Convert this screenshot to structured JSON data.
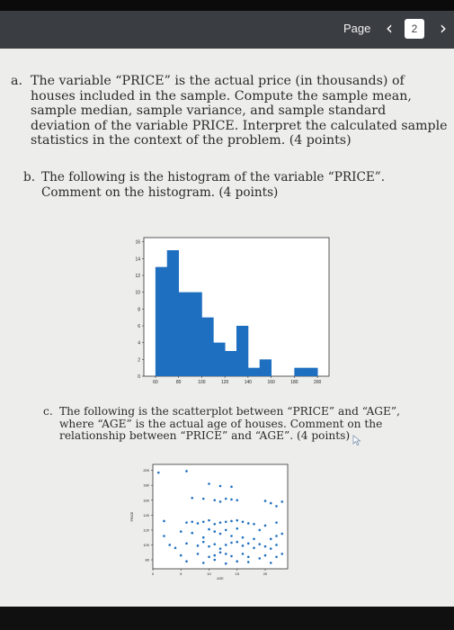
{
  "viewer": {
    "page_label": "Page",
    "prev_glyph": "‹",
    "next_glyph": "›",
    "current_page": "2"
  },
  "questions": {
    "a": {
      "label": "a.",
      "text": "The variable “PRICE” is the actual price (in thousands) of houses included in the sample. Compute the sample mean, sample median, sample variance, and sample standard deviation of the variable PRICE. Interpret the calculated sample statistics in the context of the problem. (4 points)"
    },
    "b": {
      "label": "b.",
      "text": "The following is the histogram of the variable “PRICE”. Comment on the histogram. (4 points)"
    },
    "c": {
      "label": "c.",
      "text": "The following is the scatterplot between “PRICE” and “AGE”, where “AGE” is the actual age of houses. Comment on the relationship between “PRICE” and “AGE”. (4 points)"
    }
  },
  "chart_data": [
    {
      "type": "bar",
      "color": "#1f6fc0",
      "x_ticks": [
        "60",
        "80",
        "100",
        "120",
        "140",
        "160",
        "180",
        "200"
      ],
      "y_ticks": [
        "0",
        "2",
        "4",
        "6",
        "8",
        "10",
        "12",
        "14",
        "16"
      ],
      "xlim": [
        50,
        210
      ],
      "ylim": [
        0,
        16.5
      ],
      "bins": [
        {
          "from": 60,
          "to": 70,
          "count": 13
        },
        {
          "from": 70,
          "to": 80,
          "count": 15
        },
        {
          "from": 80,
          "to": 90,
          "count": 10
        },
        {
          "from": 90,
          "to": 100,
          "count": 10
        },
        {
          "from": 100,
          "to": 110,
          "count": 7
        },
        {
          "from": 110,
          "to": 120,
          "count": 4
        },
        {
          "from": 120,
          "to": 130,
          "count": 3
        },
        {
          "from": 130,
          "to": 140,
          "count": 6
        },
        {
          "from": 140,
          "to": 150,
          "count": 1
        },
        {
          "from": 150,
          "to": 160,
          "count": 2
        },
        {
          "from": 160,
          "to": 170,
          "count": 0
        },
        {
          "from": 170,
          "to": 180,
          "count": 0
        },
        {
          "from": 180,
          "to": 190,
          "count": 1
        },
        {
          "from": 190,
          "to": 200,
          "count": 1
        }
      ]
    },
    {
      "type": "scatter",
      "color": "#1f6fc0",
      "xlabel": "AGE",
      "ylabel": "PRICE",
      "x_ticks": [
        "0",
        "5",
        "10",
        "15",
        "20"
      ],
      "y_ticks": [
        "80",
        "100",
        "120",
        "140",
        "160",
        "180",
        "200"
      ],
      "xlim": [
        0,
        24
      ],
      "ylim": [
        68,
        208
      ],
      "points": [
        [
          1,
          197
        ],
        [
          6,
          199
        ],
        [
          10,
          182
        ],
        [
          12,
          179
        ],
        [
          14,
          178
        ],
        [
          7,
          163
        ],
        [
          9,
          162
        ],
        [
          11,
          160
        ],
        [
          12,
          158
        ],
        [
          13,
          162
        ],
        [
          14,
          161
        ],
        [
          15,
          160
        ],
        [
          20,
          159
        ],
        [
          21,
          156
        ],
        [
          22,
          152
        ],
        [
          23,
          158
        ],
        [
          2,
          132
        ],
        [
          6,
          130
        ],
        [
          7,
          131
        ],
        [
          8,
          129
        ],
        [
          9,
          131
        ],
        [
          10,
          133
        ],
        [
          11,
          128
        ],
        [
          12,
          130
        ],
        [
          13,
          131
        ],
        [
          14,
          132
        ],
        [
          15,
          133
        ],
        [
          16,
          131
        ],
        [
          17,
          129
        ],
        [
          18,
          128
        ],
        [
          20,
          126
        ],
        [
          22,
          130
        ],
        [
          2,
          112
        ],
        [
          5,
          118
        ],
        [
          7,
          116
        ],
        [
          9,
          110
        ],
        [
          10,
          121
        ],
        [
          11,
          118
        ],
        [
          12,
          115
        ],
        [
          13,
          120
        ],
        [
          14,
          112
        ],
        [
          15,
          122
        ],
        [
          16,
          110
        ],
        [
          18,
          108
        ],
        [
          19,
          120
        ],
        [
          21,
          108
        ],
        [
          22,
          112
        ],
        [
          23,
          115
        ],
        [
          3,
          100
        ],
        [
          4,
          96
        ],
        [
          6,
          102
        ],
        [
          8,
          99
        ],
        [
          9,
          104
        ],
        [
          10,
          98
        ],
        [
          11,
          101
        ],
        [
          12,
          95
        ],
        [
          13,
          100
        ],
        [
          14,
          103
        ],
        [
          15,
          104
        ],
        [
          16,
          99
        ],
        [
          17,
          102
        ],
        [
          18,
          96
        ],
        [
          19,
          101
        ],
        [
          20,
          98
        ],
        [
          21,
          95
        ],
        [
          22,
          100
        ],
        [
          5,
          86
        ],
        [
          8,
          88
        ],
        [
          10,
          84
        ],
        [
          11,
          86
        ],
        [
          12,
          90
        ],
        [
          13,
          88
        ],
        [
          14,
          85
        ],
        [
          16,
          88
        ],
        [
          17,
          84
        ],
        [
          19,
          82
        ],
        [
          20,
          86
        ],
        [
          22,
          84
        ],
        [
          23,
          88
        ],
        [
          6,
          78
        ],
        [
          9,
          76
        ],
        [
          11,
          80
        ],
        [
          13,
          75
        ],
        [
          15,
          78
        ],
        [
          17,
          77
        ],
        [
          21,
          76
        ]
      ]
    }
  ]
}
